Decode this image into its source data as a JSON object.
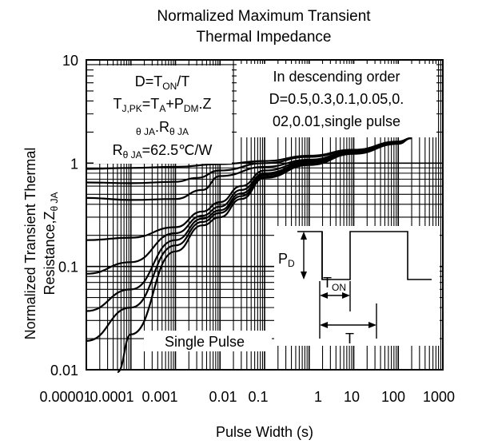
{
  "chart_data": {
    "type": "line",
    "title_line1": "Normalized Maximum Transient",
    "title_line2": "Thermal Impedance",
    "xlabel": "Pulse Width (s)",
    "ylabel_line1": "Normalized Transient Thermal",
    "ylabel_line2": "Resistance,Z",
    "ylabel_sub": "θ JA",
    "x_scale": "log",
    "y_scale": "log",
    "xlim": [
      1e-05,
      1000
    ],
    "ylim": [
      0.01,
      10
    ],
    "grid": true,
    "x_tick_labels": [
      "0.00001",
      "0.0001",
      "0.001",
      "0.01",
      "0.1",
      "1",
      "10",
      "100",
      "1000"
    ],
    "y_tick_labels": [
      "0.01",
      "0.1",
      "1",
      "10"
    ],
    "formula_box": {
      "line1_a": "D=T",
      "line1_sub": "ON",
      "line1_b": "/T",
      "line2_a": "T",
      "line2_sub1": "J,PK",
      "line2_b": "=T",
      "line2_sub2": "A",
      "line2_c": "+P",
      "line2_sub3": "DM",
      "line2_d": ".Z",
      "line3_sub1": "θ JA",
      "line3_a": ".R",
      "line3_sub2": "θ JA",
      "line4_a": "R",
      "line4_sub": "θ JA",
      "line4_b": "=62.5℃/W"
    },
    "order_box": {
      "line1": "In descending order",
      "line2": "D=0.5,0.3,0.1,0.05,0.",
      "line3": "02,0.01,single pulse"
    },
    "single_pulse_label": "Single Pulse",
    "inset": {
      "pd_label_a": "P",
      "pd_label_sub": "D",
      "ton_label_a": "T",
      "ton_label_sub": "ON",
      "t_label": "T"
    },
    "series": [
      {
        "x": [
          1e-05,
          0.0001,
          0.001,
          0.01,
          0.1,
          1,
          10,
          100,
          200
        ],
        "y": [
          0.88,
          0.9,
          0.92,
          0.98,
          1.05,
          1.18,
          1.35,
          1.62,
          1.75
        ]
      },
      {
        "x": [
          1e-05,
          0.0001,
          0.001,
          0.003,
          0.01,
          0.1,
          1,
          10,
          100,
          200
        ],
        "y": [
          0.65,
          0.64,
          0.66,
          0.72,
          0.85,
          1.0,
          1.15,
          1.33,
          1.6,
          1.75
        ]
      },
      {
        "x": [
          1e-05,
          0.0001,
          0.001,
          0.004,
          0.01,
          0.1,
          1,
          10,
          100,
          200
        ],
        "y": [
          0.46,
          0.44,
          0.45,
          0.55,
          0.75,
          0.92,
          1.08,
          1.3,
          1.58,
          1.75
        ]
      },
      {
        "x": [
          1e-05,
          0.0001,
          0.001,
          0.004,
          0.01,
          0.03,
          0.1,
          1,
          10,
          100,
          200
        ],
        "y": [
          0.18,
          0.19,
          0.24,
          0.34,
          0.42,
          0.6,
          0.85,
          1.05,
          1.28,
          1.57,
          1.75
        ]
      },
      {
        "x": [
          1e-05,
          0.0001,
          0.001,
          0.004,
          0.01,
          0.03,
          0.1,
          1,
          10,
          100,
          200
        ],
        "y": [
          0.085,
          0.11,
          0.21,
          0.31,
          0.38,
          0.55,
          0.8,
          1.02,
          1.26,
          1.56,
          1.75
        ]
      },
      {
        "x": [
          1e-05,
          0.0001,
          0.001,
          0.004,
          0.01,
          0.03,
          0.1,
          1,
          10,
          100,
          200
        ],
        "y": [
          0.037,
          0.06,
          0.18,
          0.29,
          0.35,
          0.51,
          0.77,
          1.0,
          1.25,
          1.55,
          1.75
        ]
      },
      {
        "x": [
          1e-05,
          0.0001,
          0.001,
          0.004,
          0.01,
          0.03,
          0.1,
          1,
          10,
          100,
          200
        ],
        "y": [
          0.019,
          0.04,
          0.16,
          0.27,
          0.33,
          0.48,
          0.74,
          0.98,
          1.24,
          1.55,
          1.75
        ]
      },
      {
        "x": [
          5e-05,
          0.0001,
          0.001,
          0.004,
          0.01,
          0.03,
          0.1,
          1,
          10,
          100,
          200
        ],
        "y": [
          0.0095,
          0.022,
          0.14,
          0.25,
          0.3,
          0.45,
          0.72,
          0.96,
          1.23,
          1.54,
          1.75
        ]
      }
    ]
  }
}
